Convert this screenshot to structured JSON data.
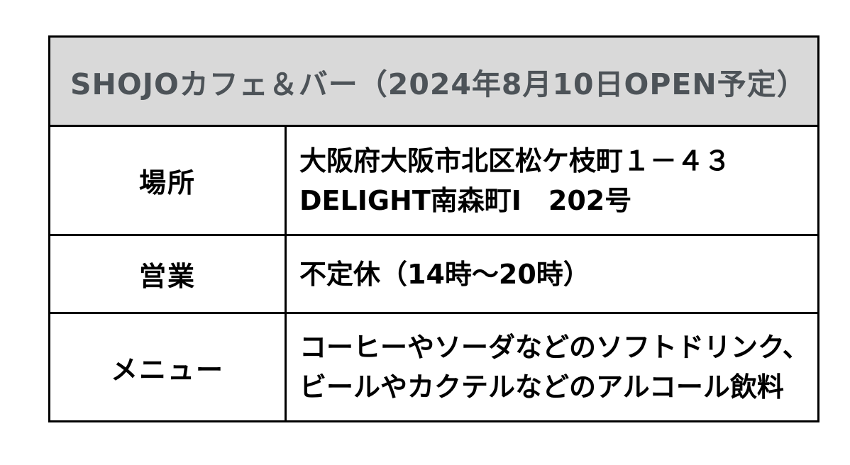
{
  "table": {
    "title": "SHOJOカフェ＆バー（2024年8月10日OPEN予定）",
    "rows": [
      {
        "label": "場所",
        "value_lines": [
          "大阪府大阪市北区松ケ枝町１－４３",
          "DELIGHT南森町Ⅰ　202号"
        ]
      },
      {
        "label": "営業",
        "value_lines": [
          "不定休（14時～20時）"
        ]
      },
      {
        "label": "メニュー",
        "value_lines": [
          "コーヒーやソーダなどのソフトドリンク、",
          "ビールやカクテルなどのアルコール飲料"
        ]
      }
    ],
    "colors": {
      "header_bg": "#d9d9d9",
      "header_text": "#4d5358",
      "body_text": "#000000",
      "border": "#000000",
      "page_bg": "#ffffff"
    }
  }
}
